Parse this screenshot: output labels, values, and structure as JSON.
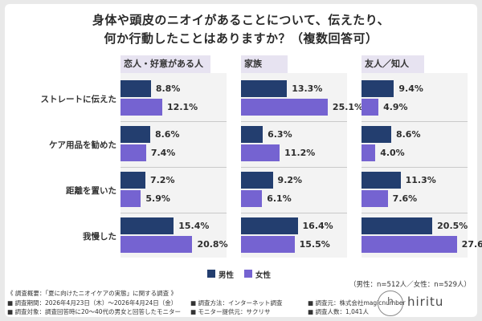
{
  "title_line1": "身体や頭皮のニオイがあることについて、伝えたり、",
  "title_line2": "何か行動したことはありますか？（複数回答可）",
  "colors": {
    "male": "#233e6f",
    "female": "#7563d1",
    "panel_header": "#e7e3f1",
    "panel_bg": "#f3f3f3"
  },
  "legend": {
    "male": "男性",
    "female": "女性"
  },
  "sample_note": "（男性：n=512人／女性：n=529人）",
  "chart_data": {
    "type": "bar",
    "orientation": "horizontal",
    "title": "身体や頭皮のニオイがあることについて、伝えたり、何か行動したことはありますか？（複数回答可）",
    "categories": [
      "ストレートに伝えた",
      "ケア用品を勧めた",
      "距離を置いた",
      "我慢した"
    ],
    "panels": [
      {
        "name": "恋人・好意がある人",
        "series": [
          {
            "name": "男性",
            "values": [
              8.8,
              8.6,
              7.2,
              15.4
            ]
          },
          {
            "name": "女性",
            "values": [
              12.1,
              7.4,
              5.9,
              20.8
            ]
          }
        ]
      },
      {
        "name": "家族",
        "series": [
          {
            "name": "男性",
            "values": [
              13.3,
              6.3,
              9.2,
              16.4
            ]
          },
          {
            "name": "女性",
            "values": [
              25.1,
              11.2,
              6.1,
              15.5
            ]
          }
        ]
      },
      {
        "name": "友人／知人",
        "series": [
          {
            "name": "男性",
            "values": [
              9.4,
              8.6,
              11.3,
              20.5
            ]
          },
          {
            "name": "女性",
            "values": [
              4.9,
              4.0,
              7.6,
              27.6
            ]
          }
        ]
      }
    ],
    "value_suffix": "%",
    "legend_position": "bottom-center"
  },
  "footer": {
    "survey_name": "《 調査概要：「夏に向けたニオイケアの実態」に関する調査 》",
    "period": "■ 調査期間：2026年4月23日（木）～2026年4月24日（金）",
    "method": "■ 調査方法：インターネット調査",
    "organizer": "■ 調査元：株式会社magicnumber",
    "target": "■ 調査対象：調査回答時に20～40代の男女と回答したモニター",
    "provider": "■ モニター提供元：サクリサ",
    "respondents": "■ 調査人数：1,041人"
  },
  "brand": "hiritu",
  "logo_text": "h"
}
